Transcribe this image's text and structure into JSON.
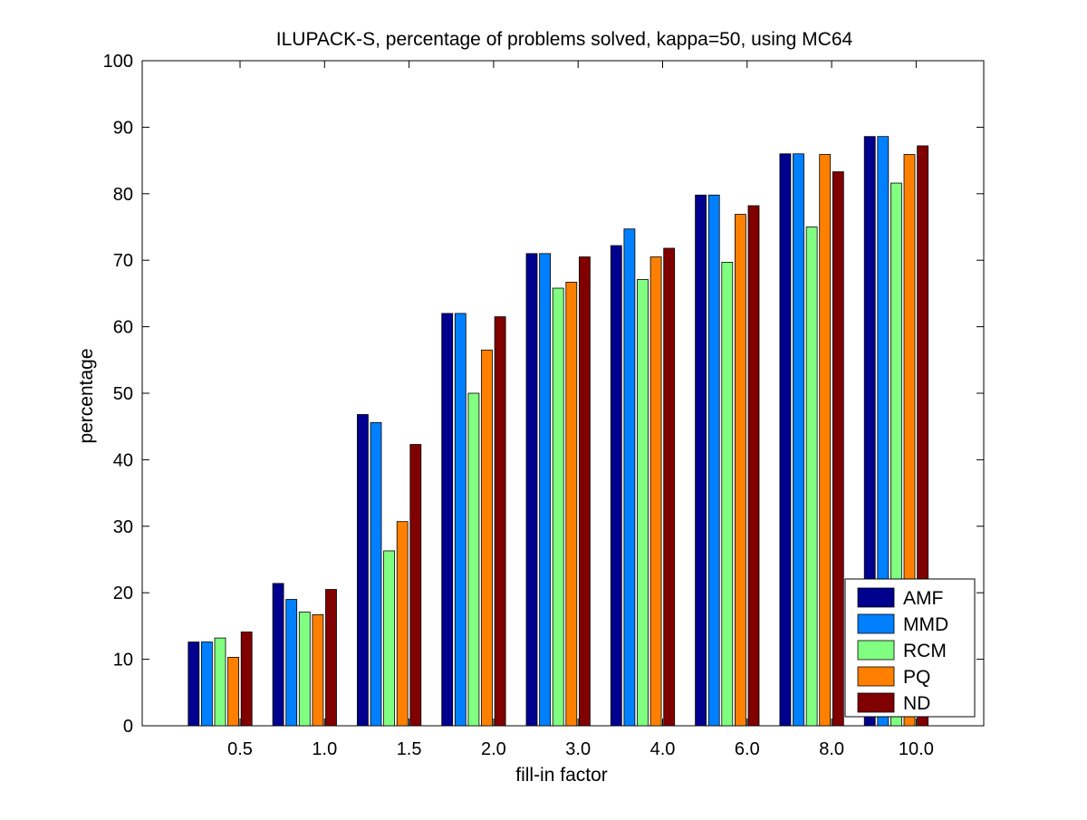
{
  "chart_data": {
    "type": "bar",
    "title": "ILUPACK-S, percentage of problems solved, kappa=50, using MC64",
    "xlabel": "fill-in factor",
    "ylabel": "percentage",
    "ylim": [
      0,
      100
    ],
    "yticks": [
      0,
      10,
      20,
      30,
      40,
      50,
      60,
      70,
      80,
      90,
      100
    ],
    "categories": [
      "0.5",
      "1.0",
      "1.5",
      "2.0",
      "3.0",
      "4.0",
      "6.0",
      "8.0",
      "10.0"
    ],
    "grid": false,
    "legend_position": "bottom-right",
    "series": [
      {
        "name": "AMF",
        "color": "#00008f",
        "values": [
          12.6,
          21.4,
          46.8,
          62.0,
          71.0,
          72.2,
          79.8,
          86.0,
          88.6
        ]
      },
      {
        "name": "MMD",
        "color": "#0080ff",
        "values": [
          12.6,
          19.0,
          45.6,
          62.0,
          71.0,
          74.7,
          79.8,
          86.0,
          88.6
        ]
      },
      {
        "name": "RCM",
        "color": "#80ff80",
        "values": [
          13.2,
          17.1,
          26.3,
          50.0,
          65.8,
          67.1,
          69.7,
          75.0,
          81.6
        ]
      },
      {
        "name": "PQ",
        "color": "#ff8000",
        "values": [
          10.3,
          16.7,
          30.7,
          56.5,
          66.7,
          70.5,
          76.9,
          85.9,
          85.9
        ]
      },
      {
        "name": "ND",
        "color": "#800000",
        "values": [
          14.1,
          20.5,
          42.3,
          61.5,
          70.5,
          71.8,
          78.2,
          83.3,
          87.2
        ]
      }
    ]
  }
}
